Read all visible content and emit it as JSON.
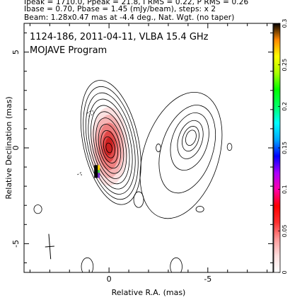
{
  "header": {
    "line1": "Ipeak = 1710.0, Ppeak = 21.8, I RMS = 0.22, P RMS = 0.26",
    "line2": "Ibase = 0.70, Pbase = 1.45 (mJy/beam), steps: x 2",
    "line3": "Beam: 1.28x0.47 mas at -4.4 deg., Nat. Wgt. (no taper)"
  },
  "chart_data": {
    "type": "contour",
    "title": "1124-186, 2011-04-11, VLBA 15.4 GHz",
    "subtitle": "MOJAVE Program",
    "xlabel": "Relative R.A. (mas)",
    "ylabel": "Relative Declination (mas)",
    "xlim": [
      4.3,
      -8.3
    ],
    "ylim": [
      -6.5,
      6.5
    ],
    "x_ticks": [
      0,
      -5
    ],
    "x_tick_labels": [
      "0",
      "-5"
    ],
    "y_ticks": [
      5,
      0,
      -5
    ],
    "y_tick_labels": [
      "5",
      "0",
      "-5"
    ],
    "core": {
      "ra": 0.0,
      "dec": 0.0
    },
    "contour_levels_count": 11,
    "secondary_component": {
      "ra": -3.8,
      "dec": 0.1
    },
    "beam": {
      "major": 1.28,
      "minor": 0.47,
      "pa": -4.4
    },
    "colorbar": {
      "range": [
        0,
        0.3
      ],
      "ticks": [
        0,
        0.05,
        0.1,
        0.15,
        0.2,
        0.25,
        0.3
      ],
      "tick_labels": [
        "0",
        "0.05",
        "0.1",
        "0.15",
        "0.2",
        "0.25",
        "0.3"
      ],
      "colors": [
        "#ffffff",
        "#ffdede",
        "#ff9a9a",
        "#ff3030",
        "#ff0000",
        "#ff00aa",
        "#aa00ff",
        "#0000ff",
        "#00aaff",
        "#00ffff",
        "#00ff66",
        "#00ff00",
        "#aaff00",
        "#ffff00",
        "#ff8800",
        "#000000"
      ]
    }
  }
}
